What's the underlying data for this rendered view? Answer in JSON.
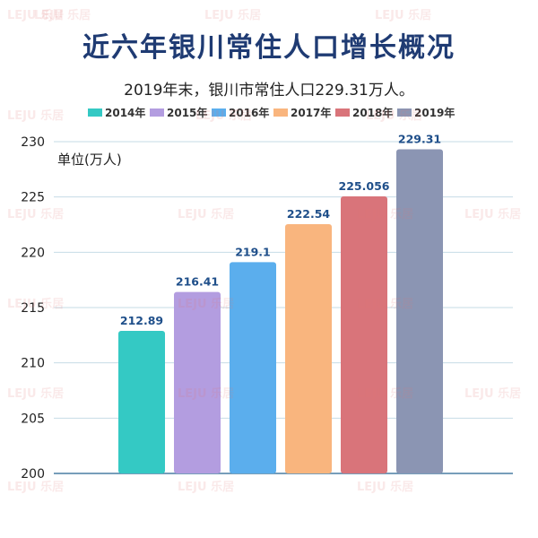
{
  "title": "近六年银川常住人口增长概况",
  "subtitle": "2019年末，银川市常住人口229.31万人。",
  "watermark": "LEJU 乐居",
  "chart_data": {
    "type": "bar",
    "categories": [
      "2014年",
      "2015年",
      "2016年",
      "2017年",
      "2018年",
      "2019年"
    ],
    "values": [
      212.89,
      216.41,
      219.1,
      222.54,
      225.056,
      229.31
    ],
    "value_labels": [
      "212.89",
      "216.41",
      "219.1",
      "222.54",
      "225.056",
      "229.31"
    ],
    "colors": [
      "#34c9c4",
      "#b39de0",
      "#5baeed",
      "#f9b57e",
      "#d9747a",
      "#8b95b3"
    ],
    "ylabel": "单位(万人)",
    "ylim": [
      200,
      230
    ],
    "yticks": [
      200,
      205,
      210,
      215,
      220,
      225,
      230
    ],
    "ytick_labels": [
      "200",
      "205",
      "210",
      "215",
      "220",
      "225",
      "230"
    ],
    "legend_position": "top",
    "grid": true
  }
}
